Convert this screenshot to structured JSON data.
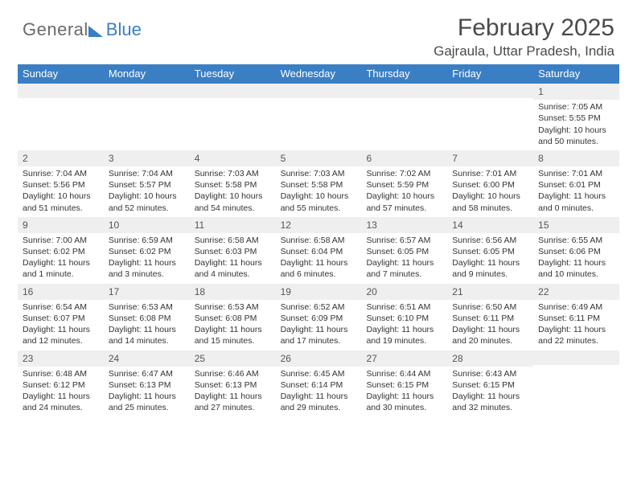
{
  "logo": {
    "text1": "General",
    "text2": "Blue"
  },
  "title": "February 2025",
  "location": "Gajraula, Uttar Pradesh, India",
  "colors": {
    "header_bg": "#3a7fc4",
    "header_text": "#ffffff",
    "daynum_bg": "#efefef",
    "body_text": "#333333",
    "title_text": "#4a4a4a"
  },
  "day_headers": [
    "Sunday",
    "Monday",
    "Tuesday",
    "Wednesday",
    "Thursday",
    "Friday",
    "Saturday"
  ],
  "weeks": [
    [
      {
        "n": "",
        "sr": "",
        "ss": "",
        "dl": ""
      },
      {
        "n": "",
        "sr": "",
        "ss": "",
        "dl": ""
      },
      {
        "n": "",
        "sr": "",
        "ss": "",
        "dl": ""
      },
      {
        "n": "",
        "sr": "",
        "ss": "",
        "dl": ""
      },
      {
        "n": "",
        "sr": "",
        "ss": "",
        "dl": ""
      },
      {
        "n": "",
        "sr": "",
        "ss": "",
        "dl": ""
      },
      {
        "n": "1",
        "sr": "Sunrise: 7:05 AM",
        "ss": "Sunset: 5:55 PM",
        "dl": "Daylight: 10 hours and 50 minutes."
      }
    ],
    [
      {
        "n": "2",
        "sr": "Sunrise: 7:04 AM",
        "ss": "Sunset: 5:56 PM",
        "dl": "Daylight: 10 hours and 51 minutes."
      },
      {
        "n": "3",
        "sr": "Sunrise: 7:04 AM",
        "ss": "Sunset: 5:57 PM",
        "dl": "Daylight: 10 hours and 52 minutes."
      },
      {
        "n": "4",
        "sr": "Sunrise: 7:03 AM",
        "ss": "Sunset: 5:58 PM",
        "dl": "Daylight: 10 hours and 54 minutes."
      },
      {
        "n": "5",
        "sr": "Sunrise: 7:03 AM",
        "ss": "Sunset: 5:58 PM",
        "dl": "Daylight: 10 hours and 55 minutes."
      },
      {
        "n": "6",
        "sr": "Sunrise: 7:02 AM",
        "ss": "Sunset: 5:59 PM",
        "dl": "Daylight: 10 hours and 57 minutes."
      },
      {
        "n": "7",
        "sr": "Sunrise: 7:01 AM",
        "ss": "Sunset: 6:00 PM",
        "dl": "Daylight: 10 hours and 58 minutes."
      },
      {
        "n": "8",
        "sr": "Sunrise: 7:01 AM",
        "ss": "Sunset: 6:01 PM",
        "dl": "Daylight: 11 hours and 0 minutes."
      }
    ],
    [
      {
        "n": "9",
        "sr": "Sunrise: 7:00 AM",
        "ss": "Sunset: 6:02 PM",
        "dl": "Daylight: 11 hours and 1 minute."
      },
      {
        "n": "10",
        "sr": "Sunrise: 6:59 AM",
        "ss": "Sunset: 6:02 PM",
        "dl": "Daylight: 11 hours and 3 minutes."
      },
      {
        "n": "11",
        "sr": "Sunrise: 6:58 AM",
        "ss": "Sunset: 6:03 PM",
        "dl": "Daylight: 11 hours and 4 minutes."
      },
      {
        "n": "12",
        "sr": "Sunrise: 6:58 AM",
        "ss": "Sunset: 6:04 PM",
        "dl": "Daylight: 11 hours and 6 minutes."
      },
      {
        "n": "13",
        "sr": "Sunrise: 6:57 AM",
        "ss": "Sunset: 6:05 PM",
        "dl": "Daylight: 11 hours and 7 minutes."
      },
      {
        "n": "14",
        "sr": "Sunrise: 6:56 AM",
        "ss": "Sunset: 6:05 PM",
        "dl": "Daylight: 11 hours and 9 minutes."
      },
      {
        "n": "15",
        "sr": "Sunrise: 6:55 AM",
        "ss": "Sunset: 6:06 PM",
        "dl": "Daylight: 11 hours and 10 minutes."
      }
    ],
    [
      {
        "n": "16",
        "sr": "Sunrise: 6:54 AM",
        "ss": "Sunset: 6:07 PM",
        "dl": "Daylight: 11 hours and 12 minutes."
      },
      {
        "n": "17",
        "sr": "Sunrise: 6:53 AM",
        "ss": "Sunset: 6:08 PM",
        "dl": "Daylight: 11 hours and 14 minutes."
      },
      {
        "n": "18",
        "sr": "Sunrise: 6:53 AM",
        "ss": "Sunset: 6:08 PM",
        "dl": "Daylight: 11 hours and 15 minutes."
      },
      {
        "n": "19",
        "sr": "Sunrise: 6:52 AM",
        "ss": "Sunset: 6:09 PM",
        "dl": "Daylight: 11 hours and 17 minutes."
      },
      {
        "n": "20",
        "sr": "Sunrise: 6:51 AM",
        "ss": "Sunset: 6:10 PM",
        "dl": "Daylight: 11 hours and 19 minutes."
      },
      {
        "n": "21",
        "sr": "Sunrise: 6:50 AM",
        "ss": "Sunset: 6:11 PM",
        "dl": "Daylight: 11 hours and 20 minutes."
      },
      {
        "n": "22",
        "sr": "Sunrise: 6:49 AM",
        "ss": "Sunset: 6:11 PM",
        "dl": "Daylight: 11 hours and 22 minutes."
      }
    ],
    [
      {
        "n": "23",
        "sr": "Sunrise: 6:48 AM",
        "ss": "Sunset: 6:12 PM",
        "dl": "Daylight: 11 hours and 24 minutes."
      },
      {
        "n": "24",
        "sr": "Sunrise: 6:47 AM",
        "ss": "Sunset: 6:13 PM",
        "dl": "Daylight: 11 hours and 25 minutes."
      },
      {
        "n": "25",
        "sr": "Sunrise: 6:46 AM",
        "ss": "Sunset: 6:13 PM",
        "dl": "Daylight: 11 hours and 27 minutes."
      },
      {
        "n": "26",
        "sr": "Sunrise: 6:45 AM",
        "ss": "Sunset: 6:14 PM",
        "dl": "Daylight: 11 hours and 29 minutes."
      },
      {
        "n": "27",
        "sr": "Sunrise: 6:44 AM",
        "ss": "Sunset: 6:15 PM",
        "dl": "Daylight: 11 hours and 30 minutes."
      },
      {
        "n": "28",
        "sr": "Sunrise: 6:43 AM",
        "ss": "Sunset: 6:15 PM",
        "dl": "Daylight: 11 hours and 32 minutes."
      },
      {
        "n": "",
        "sr": "",
        "ss": "",
        "dl": ""
      }
    ]
  ]
}
